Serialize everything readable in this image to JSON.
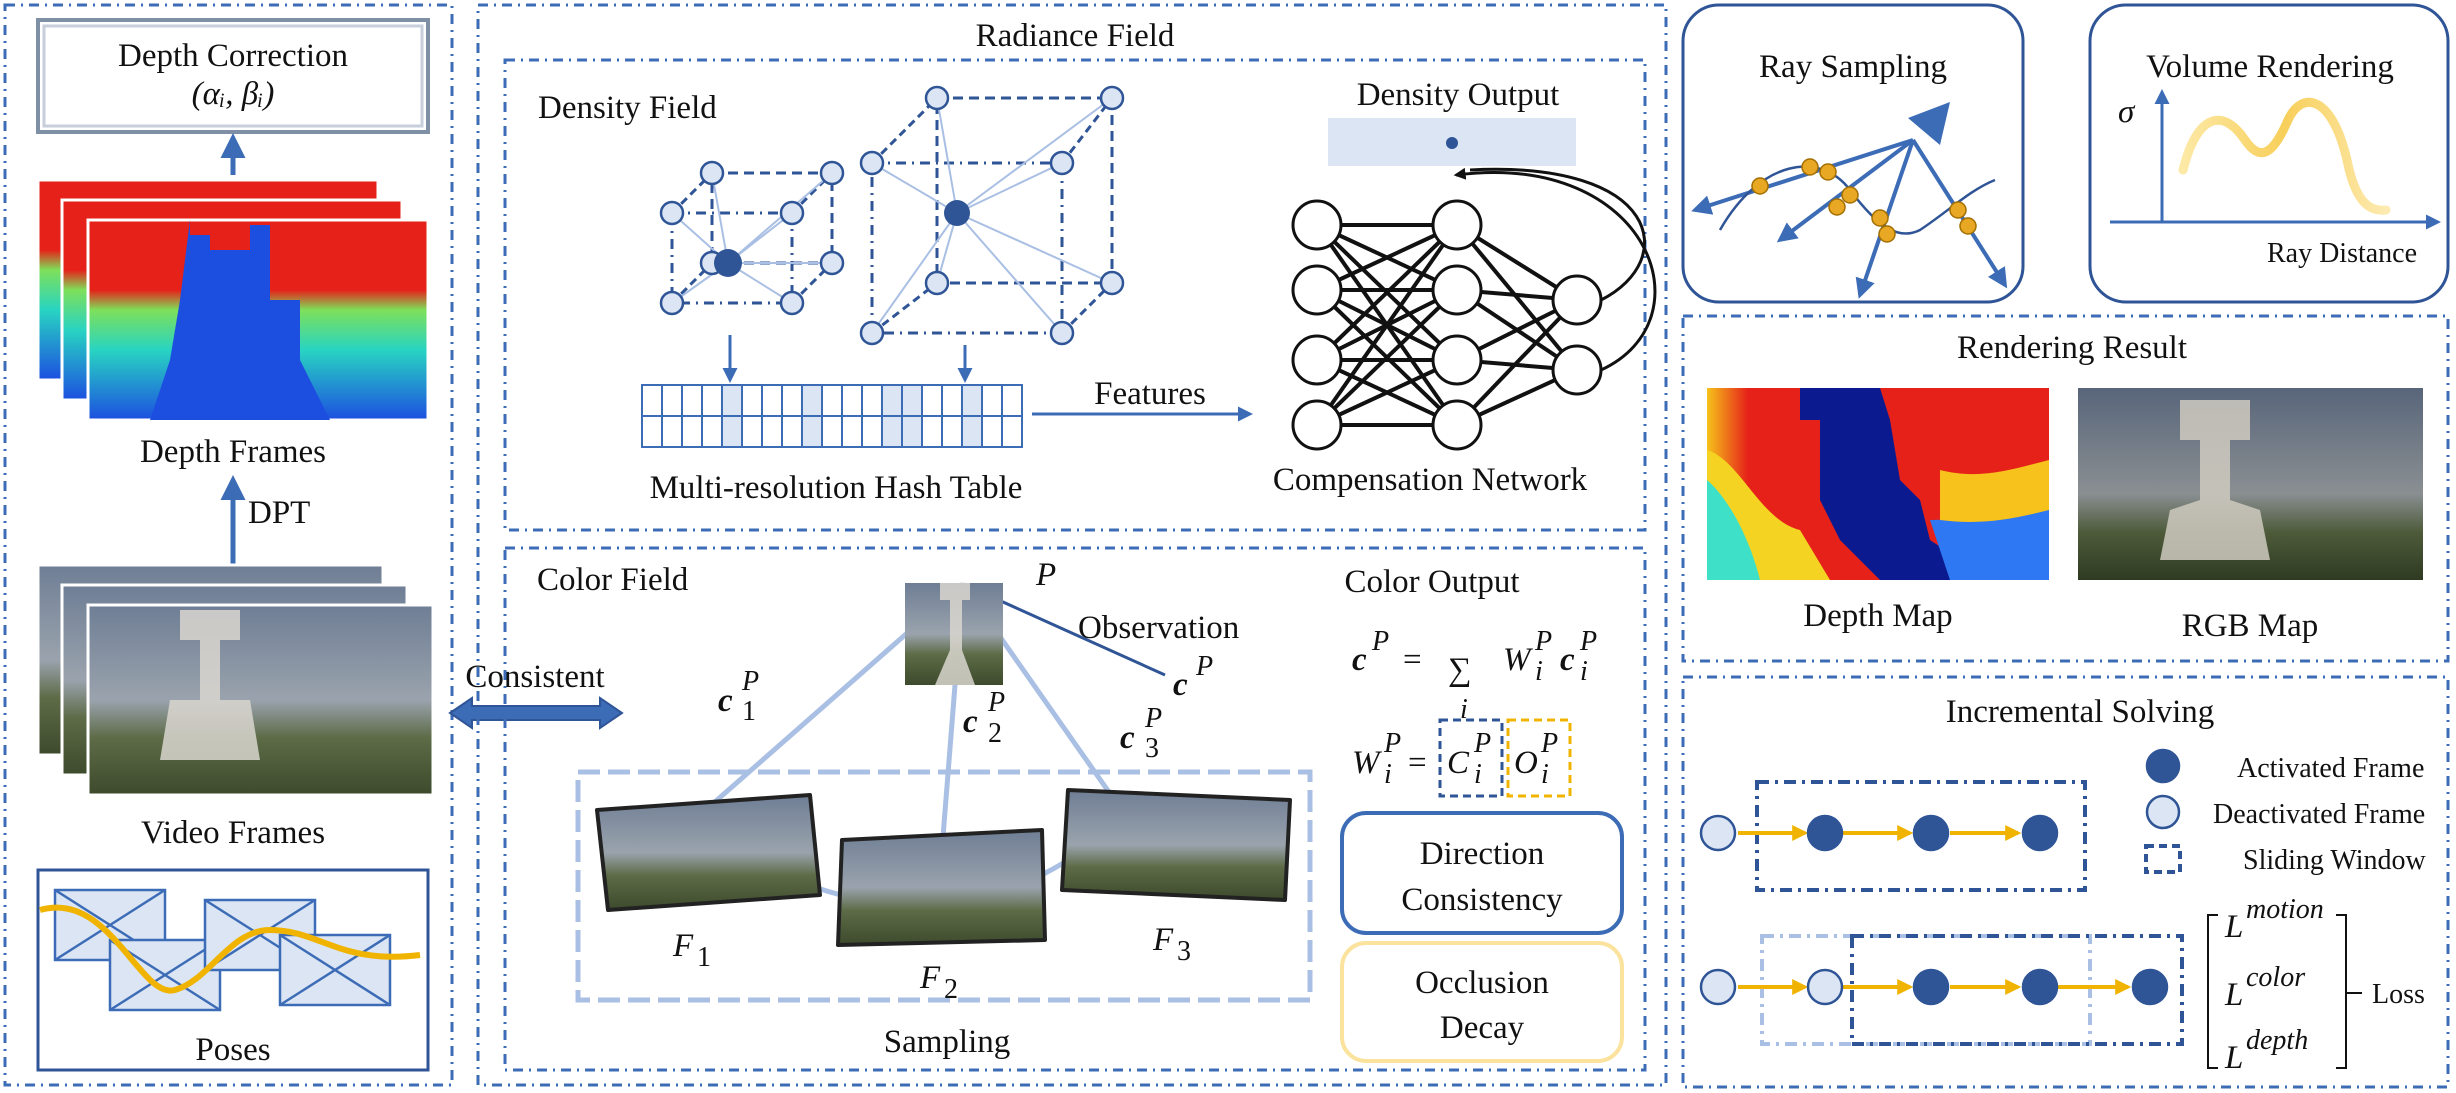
{
  "colors": {
    "accent_blue": "#3d6cb7",
    "light_blue": "#a9bfe3",
    "pale_blue": "#dbe5f4",
    "node_dark": "#2f5597",
    "orange": "#f0b400",
    "orange_dot": "#e8a823",
    "depth_red": "#e52119",
    "depth_blue": "#1c4fe0",
    "depth_navy": "#0b1b8f"
  },
  "left_panel": {
    "depth_correction": {
      "title": "Depth Correction",
      "params": "(αᵢ, βᵢ)"
    },
    "depth_frames_label": "Depth Frames",
    "dpt_label": "DPT",
    "video_frames_label": "Video Frames",
    "poses_label": "Poses",
    "consistent_label": "Consistent"
  },
  "radiance_field": {
    "title": "Radiance Field",
    "density_field": {
      "title": "Density Field",
      "hash_table_label": "Multi-resolution Hash Table",
      "features_label": "Features",
      "density_output_label": "Density Output",
      "network_label": "Compensation Network"
    },
    "color_field": {
      "title": "Color Field",
      "point_label": "P",
      "observation_label": "Observation",
      "c_label": "c",
      "c_sup": "P",
      "rays": [
        {
          "base": "c",
          "sub": "1",
          "sup": "P"
        },
        {
          "base": "c",
          "sub": "2",
          "sup": "P"
        },
        {
          "base": "c",
          "sub": "3",
          "sup": "P"
        }
      ],
      "frames": [
        {
          "base": "F",
          "sub": "1"
        },
        {
          "base": "F",
          "sub": "2"
        },
        {
          "base": "F",
          "sub": "3"
        }
      ],
      "sampling_label": "Sampling",
      "color_output_title": "Color Output",
      "formula_color": {
        "lhs": "c",
        "lhs_sup": "P",
        "eq": "=",
        "sum": "∑",
        "sum_sub": "i",
        "w": "W",
        "w_sub": "i",
        "w_sup": "P",
        "c": "c",
        "c_sub": "i",
        "c_sup": "P"
      },
      "formula_weight": {
        "w": "W",
        "w_sub": "i",
        "w_sup": "P",
        "eq": "=",
        "c": "C",
        "c_sub": "i",
        "c_sup": "P",
        "o": "O",
        "o_sub": "i",
        "o_sup": "P"
      },
      "direction_box": {
        "line1": "Direction",
        "line2": "Consistency"
      },
      "occlusion_box": {
        "line1": "Occlusion",
        "line2": "Decay"
      }
    }
  },
  "ray_sampling": {
    "title": "Ray Sampling"
  },
  "volume_rendering": {
    "title": "Volume Rendering",
    "y_label": "σ",
    "x_label": "Ray Distance"
  },
  "rendering_result": {
    "title": "Rendering Result",
    "depth_map_label": "Depth Map",
    "rgb_map_label": "RGB Map"
  },
  "incremental_solving": {
    "title": "Incremental Solving",
    "legend": {
      "activated": "Activated Frame",
      "deactivated": "Deactivated Frame",
      "window": "Sliding Window"
    },
    "losses": [
      {
        "base": "L",
        "sup": "motion"
      },
      {
        "base": "L",
        "sup": "color"
      },
      {
        "base": "L",
        "sup": "depth"
      }
    ],
    "loss_label": "Loss"
  }
}
